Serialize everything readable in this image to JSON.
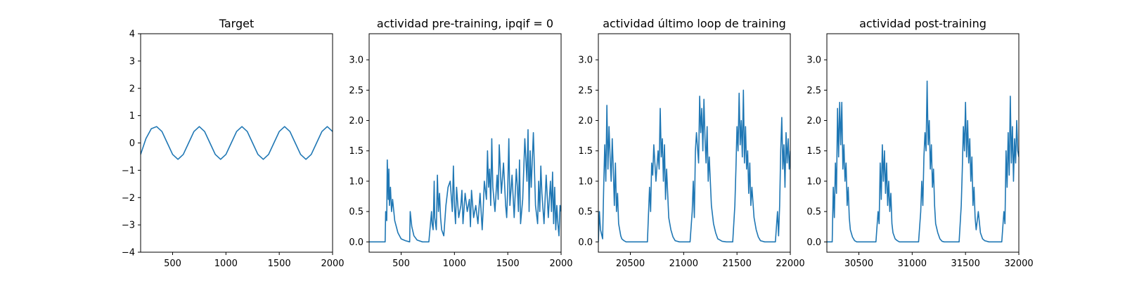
{
  "colors": {
    "series": "#1f77b4",
    "background": "#ffffff",
    "axes": "#000000"
  },
  "chart_data": [
    {
      "type": "line",
      "title": "Target",
      "xlabel": "",
      "ylabel": "",
      "xlim": [
        200,
        2000
      ],
      "ylim": [
        -4,
        4
      ],
      "xticks": [
        500,
        1000,
        1500,
        2000
      ],
      "xtick_labels": [
        "500",
        "1000",
        "1500",
        "2000"
      ],
      "yticks": [
        -4,
        -3,
        -2,
        -1,
        0,
        1,
        2,
        3,
        4
      ],
      "ytick_labels": [
        "−4",
        "−3",
        "−2",
        "−1",
        "0",
        "1",
        "2",
        "3",
        "4"
      ],
      "grid": false,
      "series": [
        {
          "x": [
            200,
            250,
            300,
            350,
            400,
            450,
            500,
            550,
            600,
            650,
            700,
            750,
            800,
            850,
            900,
            950,
            1000,
            1050,
            1100,
            1150,
            1200,
            1250,
            1300,
            1350,
            1400,
            1450,
            1500,
            1550,
            1600,
            1650,
            1700,
            1750,
            1800,
            1850,
            1900,
            1950,
            2000
          ],
          "y": [
            -0.42,
            0.16,
            0.52,
            0.6,
            0.42,
            0.0,
            -0.42,
            -0.6,
            -0.42,
            0.0,
            0.42,
            0.6,
            0.42,
            0.0,
            -0.42,
            -0.6,
            -0.42,
            0.0,
            0.42,
            0.6,
            0.42,
            0.0,
            -0.42,
            -0.6,
            -0.42,
            0.0,
            0.42,
            0.6,
            0.42,
            0.0,
            -0.42,
            -0.6,
            -0.42,
            0.0,
            0.42,
            0.6,
            0.42
          ]
        }
      ]
    },
    {
      "type": "line",
      "title": "actividad pre-training, ipqif = 0",
      "xlabel": "",
      "ylabel": "",
      "xlim": [
        200,
        2000
      ],
      "ylim": [
        -0.17,
        3.43
      ],
      "xticks": [
        500,
        1000,
        1500,
        2000
      ],
      "xtick_labels": [
        "500",
        "1000",
        "1500",
        "2000"
      ],
      "yticks": [
        0,
        0.5,
        1,
        1.5,
        2,
        2.5,
        3
      ],
      "ytick_labels": [
        "0.0",
        "0.5",
        "1.0",
        "1.5",
        "2.0",
        "2.5",
        "3.0"
      ],
      "grid": false,
      "series": [
        {
          "x": [
            200,
            350,
            355,
            365,
            370,
            380,
            385,
            390,
            400,
            410,
            420,
            440,
            470,
            500,
            540,
            580,
            585,
            600,
            620,
            650,
            700,
            760,
            785,
            790,
            800,
            810,
            815,
            830,
            840,
            850,
            860,
            870,
            880,
            900,
            920,
            940,
            960,
            980,
            990,
            1000,
            1010,
            1020,
            1040,
            1060,
            1070,
            1080,
            1100,
            1120,
            1140,
            1150,
            1160,
            1180,
            1200,
            1220,
            1240,
            1260,
            1270,
            1280,
            1300,
            1310,
            1320,
            1330,
            1340,
            1350,
            1360,
            1380,
            1400,
            1410,
            1420,
            1440,
            1460,
            1480,
            1490,
            1500,
            1510,
            1520,
            1540,
            1560,
            1580,
            1590,
            1600,
            1610,
            1620,
            1640,
            1660,
            1680,
            1690,
            1700,
            1710,
            1720,
            1740,
            1760,
            1780,
            1790,
            1800,
            1810,
            1820,
            1840,
            1860,
            1880,
            1900,
            1910,
            1920,
            1930,
            1940,
            1950,
            1960,
            1970,
            1980,
            1990,
            2000
          ],
          "y": [
            0,
            0,
            0.5,
            0.35,
            1.35,
            0.7,
            1.2,
            0.6,
            0.9,
            0.5,
            0.7,
            0.35,
            0.15,
            0.05,
            0.02,
            0,
            0.5,
            0.25,
            0.1,
            0.03,
            0,
            0,
            0.5,
            0.3,
            0.2,
            1.0,
            0.4,
            0.2,
            1.1,
            0.5,
            0.8,
            0.4,
            0.2,
            0.1,
            0.6,
            0.9,
            1.0,
            0.5,
            1.25,
            0.6,
            0.3,
            0.9,
            0.4,
            0.6,
            0.85,
            0.3,
            0.8,
            0.5,
            0.7,
            0.25,
            0.85,
            0.4,
            0.6,
            0.3,
            0.8,
            0.2,
            0.55,
            1.0,
            0.7,
            1.5,
            0.9,
            1.2,
            0.6,
            1.7,
            0.9,
            0.5,
            1.1,
            0.7,
            1.6,
            0.8,
            1.3,
            0.6,
            0.4,
            0.9,
            1.7,
            0.6,
            1.1,
            0.4,
            1.2,
            0.9,
            0.5,
            1.35,
            0.3,
            0.7,
            1.7,
            1.0,
            1.85,
            0.5,
            1.5,
            0.9,
            1.8,
            0.6,
            0.3,
            1.0,
            0.5,
            1.25,
            0.8,
            0.3,
            1.1,
            0.4,
            1.0,
            0.5,
            1.15,
            0.3,
            0.9,
            0.2,
            0.6,
            0.3,
            0.1,
            0.6,
            0.5
          ]
        }
      ]
    },
    {
      "type": "line",
      "title": "actividad último loop de training",
      "xlabel": "",
      "ylabel": "",
      "xlim": [
        20200,
        22000
      ],
      "ylim": [
        -0.17,
        3.43
      ],
      "xticks": [
        20500,
        21000,
        21500,
        22000
      ],
      "xtick_labels": [
        "20500",
        "21000",
        "21500",
        "22000"
      ],
      "yticks": [
        0,
        0.5,
        1,
        1.5,
        2,
        2.5,
        3
      ],
      "ytick_labels": [
        "0.0",
        "0.5",
        "1.0",
        "1.5",
        "2.0",
        "2.5",
        "3.0"
      ],
      "grid": false,
      "series": [
        {
          "x": [
            20200,
            20210,
            20220,
            20240,
            20250,
            20260,
            20270,
            20280,
            20290,
            20300,
            20310,
            20320,
            20330,
            20340,
            20350,
            20360,
            20370,
            20380,
            20390,
            20400,
            20410,
            20420,
            20440,
            20460,
            20480,
            20500,
            20540,
            20580,
            20620,
            20660,
            20680,
            20690,
            20700,
            20710,
            20720,
            20740,
            20760,
            20770,
            20780,
            20790,
            20800,
            20810,
            20820,
            20830,
            20840,
            20860,
            20880,
            20900,
            20920,
            20960,
            21000,
            21060,
            21080,
            21090,
            21100,
            21110,
            21120,
            21140,
            21150,
            21160,
            21170,
            21180,
            21190,
            21200,
            21210,
            21220,
            21230,
            21240,
            21260,
            21280,
            21300,
            21320,
            21360,
            21400,
            21460,
            21480,
            21490,
            21500,
            21510,
            21520,
            21530,
            21540,
            21550,
            21560,
            21570,
            21580,
            21590,
            21600,
            21610,
            21620,
            21630,
            21640,
            21660,
            21680,
            21700,
            21720,
            21760,
            21800,
            21860,
            21880,
            21890,
            21900,
            21910,
            21920,
            21930,
            21940,
            21950,
            21960,
            21970,
            21980,
            21990,
            22000
          ],
          "y": [
            0,
            0.5,
            0.2,
            0.05,
            0.9,
            1.6,
            1.0,
            2.25,
            1.2,
            1.9,
            1.4,
            1.0,
            1.7,
            1.2,
            0.6,
            1.3,
            0.5,
            0.8,
            0.3,
            0.2,
            0.1,
            0.05,
            0.02,
            0,
            0,
            0,
            0,
            0,
            0,
            0,
            0.9,
            0.5,
            1.3,
            1.1,
            1.6,
            1.0,
            1.5,
            1.2,
            2.2,
            1.4,
            1.7,
            1.0,
            1.6,
            0.7,
            1.2,
            0.4,
            0.2,
            0.08,
            0.02,
            0,
            0,
            0,
            0.5,
            1.0,
            0.4,
            1.5,
            1.8,
            1.3,
            2.4,
            1.8,
            2.2,
            1.5,
            2.35,
            1.7,
            1.3,
            1.9,
            1.0,
            1.4,
            0.6,
            0.3,
            0.15,
            0.05,
            0.01,
            0,
            0,
            0.6,
            1.2,
            1.9,
            1.5,
            2.45,
            1.6,
            2.0,
            1.4,
            2.5,
            1.3,
            1.9,
            1.2,
            1.5,
            0.8,
            1.3,
            0.6,
            0.9,
            0.4,
            0.2,
            0.08,
            0.02,
            0,
            0,
            0,
            0.5,
            0.1,
            0.6,
            1.5,
            2.05,
            1.2,
            1.6,
            0.9,
            1.8,
            1.3,
            1.7,
            1.2,
            1.5
          ]
        }
      ]
    },
    {
      "type": "line",
      "title": "actividad post-training",
      "xlabel": "",
      "ylabel": "",
      "xlim": [
        30200,
        32000
      ],
      "ylim": [
        -0.17,
        3.43
      ],
      "xticks": [
        30500,
        31000,
        31500,
        32000
      ],
      "xtick_labels": [
        "30500",
        "31000",
        "31500",
        "32000"
      ],
      "yticks": [
        0,
        0.5,
        1,
        1.5,
        2,
        2.5,
        3
      ],
      "ytick_labels": [
        "0.0",
        "0.5",
        "1.0",
        "1.5",
        "2.0",
        "2.5",
        "3.0"
      ],
      "grid": false,
      "series": [
        {
          "x": [
            30200,
            30250,
            30260,
            30270,
            30280,
            30290,
            30300,
            30310,
            30320,
            30330,
            30340,
            30350,
            30360,
            30370,
            30380,
            30390,
            30400,
            30410,
            30420,
            30440,
            30460,
            30480,
            30500,
            30540,
            30600,
            30660,
            30680,
            30690,
            30700,
            30710,
            30720,
            30730,
            30740,
            30750,
            30760,
            30770,
            30780,
            30790,
            30800,
            30810,
            30820,
            30840,
            30860,
            30880,
            30920,
            30960,
            31000,
            31060,
            31080,
            31090,
            31100,
            31110,
            31120,
            31130,
            31140,
            31150,
            31160,
            31170,
            31180,
            31190,
            31200,
            31210,
            31220,
            31240,
            31260,
            31280,
            31300,
            31340,
            31380,
            31440,
            31460,
            31470,
            31480,
            31490,
            31500,
            31510,
            31520,
            31530,
            31540,
            31550,
            31560,
            31570,
            31580,
            31590,
            31600,
            31620,
            31640,
            31660,
            31680,
            31720,
            31760,
            31840,
            31860,
            31870,
            31880,
            31890,
            31900,
            31910,
            31920,
            31930,
            31940,
            31950,
            31960,
            31970,
            31980,
            31990,
            32000
          ],
          "y": [
            0,
            0,
            0.9,
            0.4,
            1.3,
            0.8,
            2.2,
            1.4,
            2.3,
            1.6,
            2.3,
            1.2,
            1.6,
            1.0,
            1.3,
            0.6,
            0.9,
            0.4,
            0.2,
            0.08,
            0.02,
            0,
            0,
            0,
            0,
            0,
            0.5,
            0.3,
            1.3,
            0.7,
            1.6,
            1.0,
            1.5,
            0.8,
            1.3,
            0.6,
            1.0,
            0.5,
            0.8,
            0.3,
            0.15,
            0.05,
            0.02,
            0,
            0,
            0,
            0,
            0,
            0.5,
            1.0,
            0.6,
            1.4,
            1.8,
            1.5,
            2.65,
            1.6,
            2.0,
            1.2,
            1.6,
            0.9,
            1.2,
            0.6,
            0.3,
            0.15,
            0.05,
            0.01,
            0,
            0,
            0,
            0,
            0.6,
            1.2,
            1.9,
            1.5,
            2.3,
            1.4,
            2.0,
            1.3,
            1.7,
            1.0,
            1.4,
            0.6,
            0.9,
            0.4,
            0.2,
            0.5,
            0.15,
            0.05,
            0.02,
            0,
            0,
            0,
            0.5,
            0.3,
            1.5,
            0.9,
            1.8,
            1.1,
            2.4,
            1.3,
            1.9,
            1.0,
            1.7,
            1.3,
            2.0,
            1.5,
            1.4
          ]
        }
      ]
    }
  ]
}
